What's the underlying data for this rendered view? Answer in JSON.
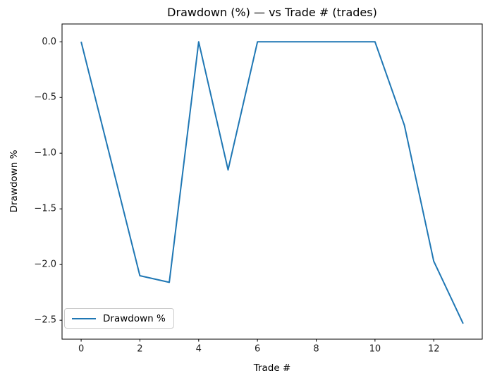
{
  "chart_data": {
    "type": "line",
    "title": "Drawdown (%) — vs Trade # (trades)",
    "xlabel": "Trade #",
    "ylabel": "Drawdown %",
    "x": [
      0,
      1,
      2,
      3,
      4,
      5,
      6,
      7,
      8,
      9,
      10,
      11,
      12,
      13
    ],
    "series": [
      {
        "name": "Drawdown %",
        "values": [
          0.0,
          -1.05,
          -2.1,
          -2.16,
          0.0,
          -1.15,
          0.0,
          0.0,
          0.0,
          0.0,
          0.0,
          -0.75,
          -1.97,
          -2.53
        ],
        "color": "#1f77b4"
      }
    ],
    "xlim": [
      -0.65,
      13.65
    ],
    "ylim": [
      -2.67,
      0.16
    ],
    "xticks": [
      0,
      2,
      4,
      6,
      8,
      10,
      12
    ],
    "yticks": [
      0.0,
      -0.5,
      -1.0,
      -1.5,
      -2.0,
      -2.5
    ],
    "xtick_labels": [
      "0",
      "2",
      "4",
      "6",
      "8",
      "10",
      "12"
    ],
    "ytick_labels": [
      "0.0",
      "−0.5",
      "−1.0",
      "−1.5",
      "−2.0",
      "−2.5"
    ],
    "grid": false,
    "legend": {
      "label": "Drawdown %",
      "position": "lower left"
    },
    "colors": {
      "line": "#1f77b4",
      "spine": "#000000",
      "tick_label": "#1a1a1a",
      "legend_border": "#cccccc",
      "background": "#ffffff"
    }
  }
}
